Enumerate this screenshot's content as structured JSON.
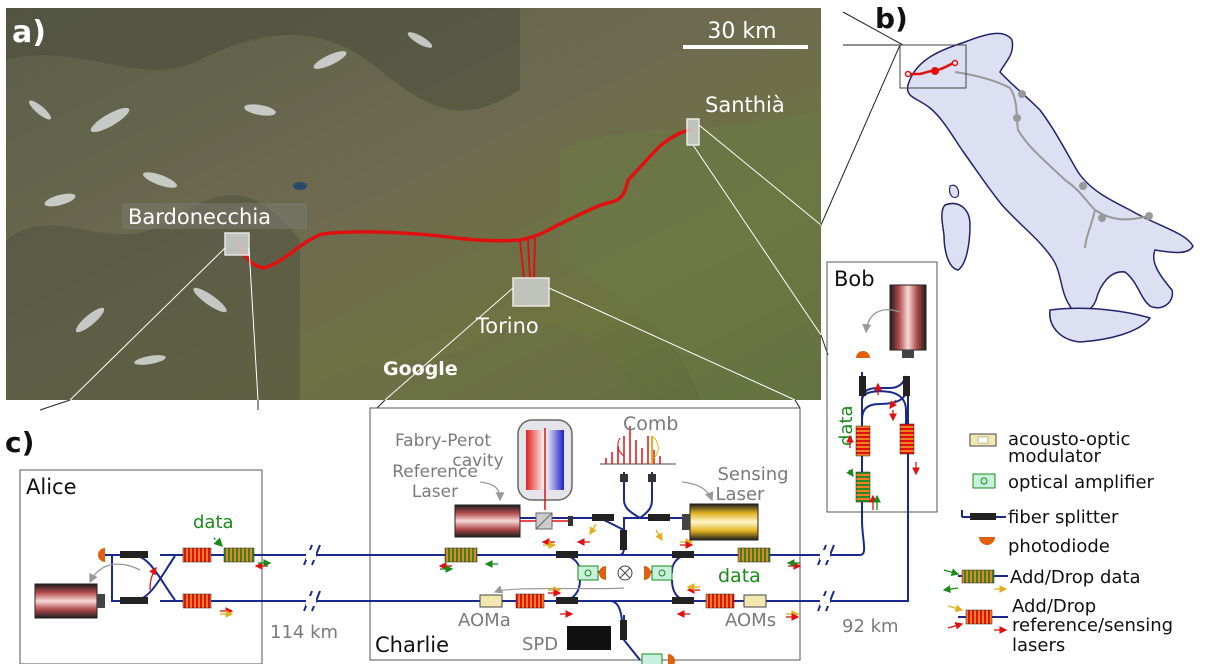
{
  "panels": {
    "a": "a)",
    "b": "b)",
    "c": "c)"
  },
  "map": {
    "scale_label": "30 km",
    "places": [
      "Bardonecchia",
      "Torino",
      "Santhià"
    ],
    "watermark": "Google"
  },
  "nodes": {
    "alice": "Alice",
    "bob": "Bob",
    "charlie": "Charlie"
  },
  "labels": {
    "fp_cavity_1": "Fabry-Perot",
    "fp_cavity_2": "cavity",
    "comb": "Comb",
    "reference_laser_1": "Reference",
    "reference_laser_2": "Laser",
    "sensing_laser_1": "Sensing",
    "sensing_laser_2": "Laser",
    "data_alice": "data",
    "data_charlie": "data",
    "data_bob": "data",
    "aoma": "AOMa",
    "aoms": "AOMs",
    "spd": "SPD",
    "dist_left": "114 km",
    "dist_right": "92 km"
  },
  "legend": {
    "aom_1": "acousto-optic",
    "aom_2": "modulator",
    "amp": "optical amplifier",
    "splitter": "fiber splitter",
    "photodiode": "photodiode",
    "adddrop_data": "Add/Drop data",
    "adddrop_ref_1": "Add/Drop",
    "adddrop_ref_2": "reference/sensing",
    "adddrop_ref_3": "lasers"
  },
  "colors": {
    "route": "#e01010",
    "fiber": "#1a2a8c",
    "data": "#1a8a1a",
    "italy": "#dde0f2",
    "label_gray": "#7a7a7a"
  }
}
